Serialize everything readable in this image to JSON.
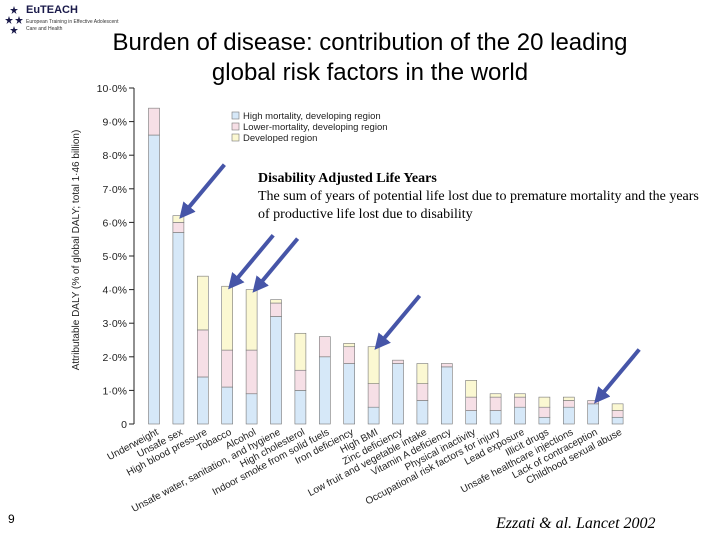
{
  "logo": {
    "name": "EuTEACH",
    "sub_lines": [
      "European Training in Effective Adolescent",
      "Care and Health"
    ]
  },
  "title_lines": [
    "Burden of disease: contribution of the 20 leading",
    "global risk factors in the world"
  ],
  "annotation": {
    "heading": "Disability Adjusted Life Years",
    "body": "The sum of years of potential life lost due to premature mortality and the years of productive life lost due to disability"
  },
  "page_number": "9",
  "citation": "Ezzati & al. Lancet 2002",
  "colors": {
    "high_mortality": "#d6e8f8",
    "lower_mortality": "#f6dfe6",
    "developed": "#fbf8d2",
    "arrow": "#4655a8",
    "axis": "#222222"
  },
  "chart_data": {
    "type": "bar",
    "stacked": true,
    "ylabel": "Attributable DALY (% of global DALY; total 1·46 billion)",
    "ylim": [
      0,
      10
    ],
    "yticks": [
      "0",
      "1·0%",
      "2·0%",
      "3·0%",
      "4·0%",
      "5·0%",
      "6·0%",
      "7·0%",
      "8·0%",
      "9·0%",
      "10·0%"
    ],
    "legend_position": "top-center",
    "categories": [
      "Underweight",
      "Unsafe sex",
      "High blood pressure",
      "Tobacco",
      "Alcohol",
      "Unsafe water, sanitation, and hygiene",
      "High cholesterol",
      "Indoor smoke from solid fuels",
      "Iron deficiency",
      "High BMI",
      "Zinc deficiency",
      "Low fruit and vegetable intake",
      "Vitamin A deficiency",
      "Physical inactivity",
      "Occupational risk factors for injury",
      "Lead exposure",
      "Illicit drugs",
      "Unsafe healthcare injections",
      "Lack of contraception",
      "Childhood sexual abuse"
    ],
    "series": [
      {
        "name": "High mortality, developing region",
        "values": [
          8.6,
          5.7,
          1.4,
          1.1,
          0.9,
          3.2,
          1.0,
          2.0,
          1.8,
          0.5,
          1.8,
          0.7,
          1.7,
          0.4,
          0.4,
          0.5,
          0.2,
          0.5,
          0.6,
          0.2
        ]
      },
      {
        "name": "Lower-mortality, developing region",
        "values": [
          0.8,
          0.3,
          1.4,
          1.1,
          1.3,
          0.4,
          0.6,
          0.6,
          0.5,
          0.7,
          0.1,
          0.5,
          0.1,
          0.4,
          0.4,
          0.3,
          0.3,
          0.2,
          0.1,
          0.2
        ]
      },
      {
        "name": "Developed region",
        "values": [
          0.0,
          0.2,
          1.6,
          1.9,
          1.8,
          0.1,
          1.1,
          0.0,
          0.1,
          1.1,
          0.0,
          0.6,
          0.0,
          0.5,
          0.1,
          0.1,
          0.3,
          0.1,
          0.0,
          0.2
        ]
      }
    ],
    "arrowed_categories": [
      "Unsafe sex",
      "Tobacco",
      "Alcohol",
      "High BMI",
      "Lack of contraception"
    ]
  }
}
